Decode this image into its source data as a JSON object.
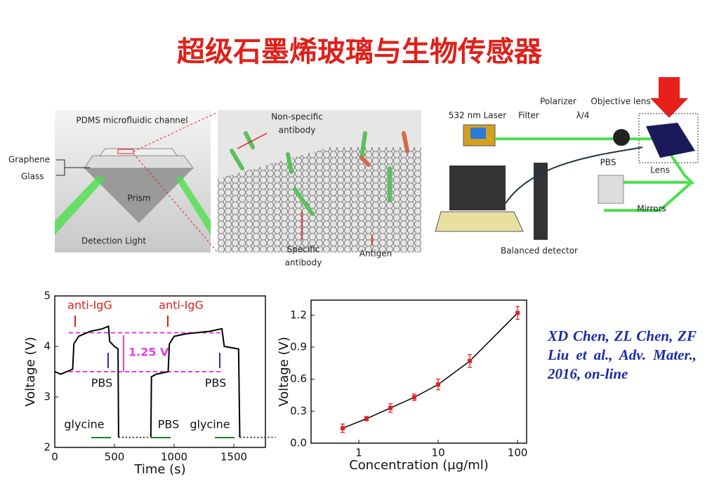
{
  "title": "超级石墨烯玻璃与生物传感器",
  "figure_a": {
    "labels": [
      "PDMS microfluidic  channel",
      "Graphene",
      "Glass",
      "Prism",
      "Detection Light"
    ]
  },
  "figure_b": {
    "non_specific": [
      "Non-specific",
      "antibody"
    ],
    "specific": [
      "Specific",
      "antibody"
    ],
    "antigen": "Antigen"
  },
  "figure_c": {
    "labels": [
      "532 nm Laser",
      "Filter",
      "Polarizer",
      "λ/4",
      "Objective lens",
      "PBS",
      "Lens",
      "Mirrors",
      "Balanced detector"
    ]
  },
  "chart_data": [
    {
      "type": "line",
      "xlabel": "Time (s)",
      "ylabel": "Voltage (V)",
      "x": [
        0,
        50,
        100,
        150,
        160,
        200,
        300,
        400,
        450,
        460,
        500,
        530,
        535,
        800,
        805,
        810,
        850,
        950,
        960,
        1000,
        1100,
        1300,
        1400,
        1420,
        1540,
        1550,
        1850
      ],
      "series": [
        {
          "color": "#000000",
          "style": "solid",
          "values": [
            3.5,
            3.45,
            3.5,
            3.55,
            4.05,
            4.2,
            4.3,
            4.35,
            4.4,
            4.1,
            4.0,
            3.95,
            2.2,
            null,
            2.2,
            3.4,
            3.45,
            3.5,
            4.05,
            4.2,
            4.25,
            4.3,
            4.35,
            4.0,
            3.95,
            2.2,
            null
          ]
        },
        {
          "color": "#000000",
          "style": "dotted",
          "values": [
            null,
            null,
            null,
            null,
            null,
            null,
            null,
            null,
            null,
            null,
            null,
            null,
            2.2,
            2.2,
            null,
            null,
            null,
            null,
            null,
            null,
            null,
            null,
            null,
            null,
            null,
            2.2,
            2.2
          ]
        }
      ],
      "xlim": [
        0,
        1765
      ],
      "xticks": [
        0,
        500,
        1000,
        1500
      ],
      "ylim": [
        2,
        5
      ],
      "yticks": [
        2,
        3,
        4,
        5
      ],
      "hlines": [
        4.27,
        3.5
      ],
      "hline_color": "#e040e0",
      "annotations": [
        "anti-IgG",
        "anti-IgG",
        "PBS",
        "PBS",
        "PBS",
        "glycine",
        "glycine",
        "1.25 V"
      ]
    },
    {
      "type": "scatter",
      "xlabel": "Concentration (µg/ml)",
      "ylabel": "Voltage (V)",
      "x": [
        0.625,
        1.25,
        2.5,
        5,
        10,
        25,
        100
      ],
      "values": [
        0.14,
        0.23,
        0.33,
        0.43,
        0.55,
        0.77,
        1.22
      ],
      "errors": [
        0.04,
        0.02,
        0.04,
        0.03,
        0.05,
        0.06,
        0.06
      ],
      "color": "#e02020",
      "line_color": "#000000",
      "xscale": "log",
      "xlim": [
        0.25,
        130
      ],
      "xticks": [
        1,
        10,
        100
      ],
      "ylim": [
        0,
        1.34
      ],
      "yticks": [
        {
          "value": 0,
          "label": "0.0"
        },
        0.3,
        0.6,
        0.9,
        1.2
      ]
    }
  ],
  "citation": "XD Chen, ZL Chen, ZF Liu et al., Adv. Mater., 2016, on-line"
}
